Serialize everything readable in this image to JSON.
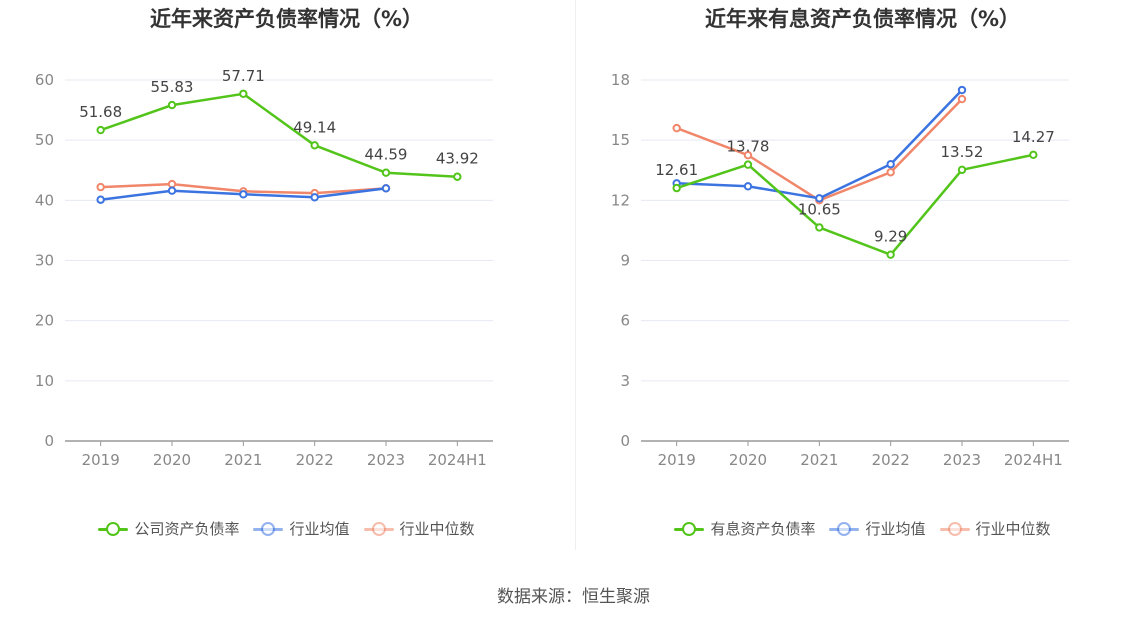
{
  "chart_data": [
    {
      "type": "line",
      "title": "近年来资产负债率情况（%）",
      "categories": [
        "2019",
        "2020",
        "2021",
        "2022",
        "2023",
        "2024H1"
      ],
      "ylim": [
        0,
        60
      ],
      "yticks": [
        0,
        10,
        20,
        30,
        40,
        50,
        60
      ],
      "grid": true,
      "legend_position": "bottom",
      "series": [
        {
          "name": "公司资产负债率",
          "color": "#52c41a",
          "values": [
            51.68,
            55.83,
            57.71,
            49.14,
            44.59,
            43.92
          ],
          "labels": [
            "51.68",
            "55.83",
            "57.71",
            "49.14",
            "44.59",
            "43.92"
          ]
        },
        {
          "name": "行业均值",
          "color": "#3b73e0",
          "values": [
            40.1,
            41.6,
            41.0,
            40.5,
            42.0,
            null
          ]
        },
        {
          "name": "行业中位数",
          "color": "#f0866a",
          "values": [
            42.2,
            42.7,
            41.5,
            41.2,
            42.0,
            null
          ]
        }
      ]
    },
    {
      "type": "line",
      "title": "近年来有息资产负债率情况（%）",
      "categories": [
        "2019",
        "2020",
        "2021",
        "2022",
        "2023",
        "2024H1"
      ],
      "ylim": [
        0,
        18
      ],
      "yticks": [
        0,
        3,
        6,
        9,
        12,
        15,
        18
      ],
      "grid": true,
      "legend_position": "bottom",
      "series": [
        {
          "name": "有息资产负债率",
          "color": "#52c41a",
          "values": [
            12.61,
            13.78,
            10.65,
            9.29,
            13.52,
            14.27
          ],
          "labels": [
            "12.61",
            "13.78",
            "10.65",
            "9.29",
            "13.52",
            "14.27"
          ]
        },
        {
          "name": "行业均值",
          "color": "#3b73e0",
          "values": [
            12.85,
            12.7,
            12.1,
            13.8,
            17.5,
            null
          ]
        },
        {
          "name": "行业中位数",
          "color": "#f0866a",
          "values": [
            15.6,
            14.25,
            12.0,
            13.4,
            17.05,
            null
          ]
        }
      ]
    }
  ],
  "source_text": "数据来源：恒生聚源"
}
